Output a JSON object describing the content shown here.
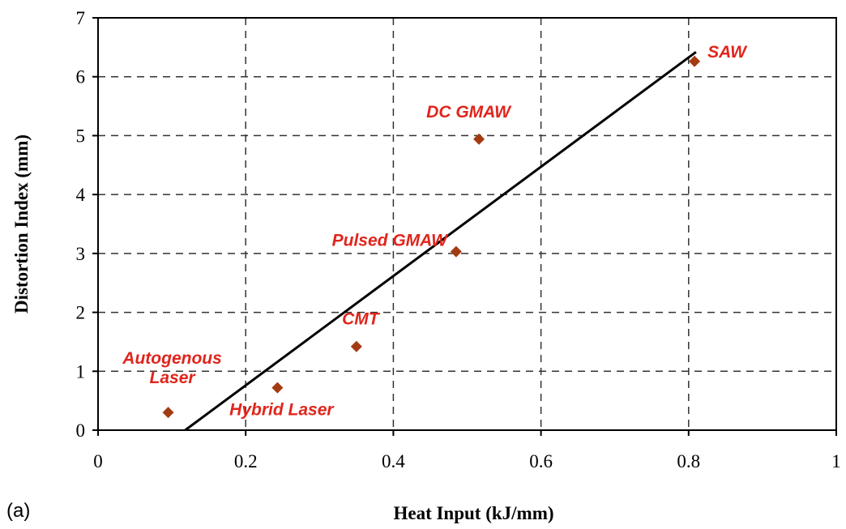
{
  "chart_data": {
    "type": "scatter",
    "xlabel": "Heat Input (kJ/mm)",
    "ylabel": "Distortion Index (mm)",
    "xlim": [
      0,
      1
    ],
    "ylim": [
      0,
      7
    ],
    "x_ticks": [
      "0",
      "0.2",
      "0.4",
      "0.6",
      "0.8",
      "1"
    ],
    "y_ticks": [
      "0",
      "1",
      "2",
      "3",
      "4",
      "5",
      "6",
      "7"
    ],
    "grid": true,
    "series": [
      {
        "points": [
          {
            "x": 0.095,
            "y": 0.3,
            "label": [
              "Autogenous",
              "Laser"
            ]
          },
          {
            "x": 0.243,
            "y": 0.72,
            "label": [
              "Hybrid Laser"
            ]
          },
          {
            "x": 0.35,
            "y": 1.42,
            "label": [
              "CMT"
            ]
          },
          {
            "x": 0.485,
            "y": 3.03,
            "label": [
              "Pulsed GMAW"
            ]
          },
          {
            "x": 0.516,
            "y": 4.94,
            "label": [
              "DC GMAW"
            ]
          },
          {
            "x": 0.808,
            "y": 6.26,
            "label": [
              "SAW"
            ]
          }
        ]
      }
    ],
    "trendline": {
      "x": [
        0.118,
        0.81
      ],
      "y": [
        0.0,
        6.42
      ]
    },
    "panel_label": "(a)"
  },
  "colors": {
    "marker": "#a33b12",
    "label": "#e0251c",
    "grid": "#333333",
    "trendline": "#000000"
  }
}
